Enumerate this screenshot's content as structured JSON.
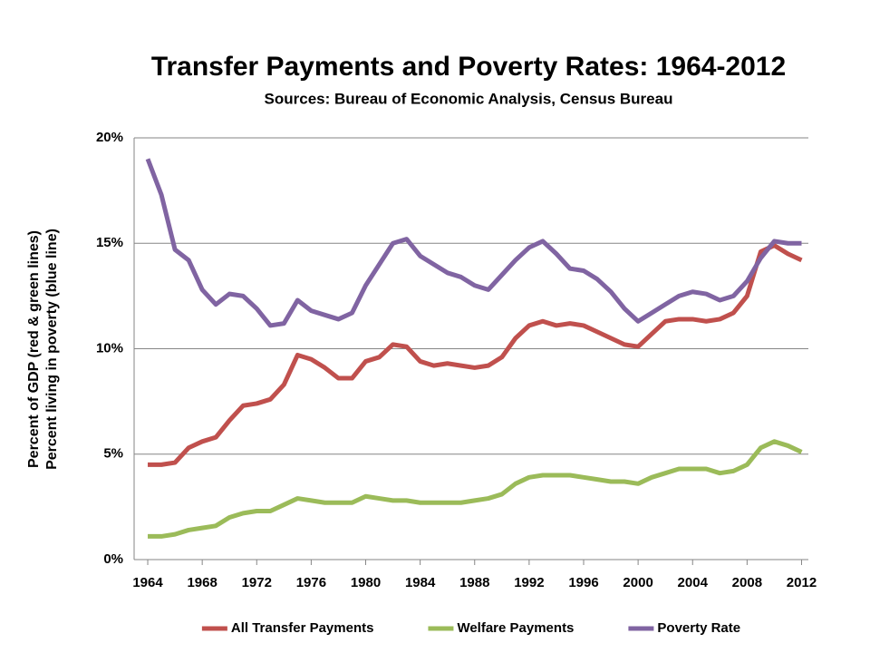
{
  "chart_data": {
    "type": "line",
    "title": "Transfer Payments and Poverty Rates: 1964-2012",
    "subtitle": "Sources: Bureau of Economic Analysis, Census Bureau",
    "y_label": [
      "Percent of GDP (red & green lines)",
      "Percent living in poverty (blue line)"
    ],
    "x": [
      1964,
      1965,
      1966,
      1967,
      1968,
      1969,
      1970,
      1971,
      1972,
      1973,
      1974,
      1975,
      1976,
      1977,
      1978,
      1979,
      1980,
      1981,
      1982,
      1983,
      1984,
      1985,
      1986,
      1987,
      1988,
      1989,
      1990,
      1991,
      1992,
      1993,
      1994,
      1995,
      1996,
      1997,
      1998,
      1999,
      2000,
      2001,
      2002,
      2003,
      2004,
      2005,
      2006,
      2007,
      2008,
      2009,
      2010,
      2011,
      2012
    ],
    "xlim": [
      1963,
      2012.5
    ],
    "xticks": [
      1964,
      1968,
      1972,
      1976,
      1980,
      1984,
      1988,
      1992,
      1996,
      2000,
      2004,
      2008,
      2012
    ],
    "ylim": [
      0,
      20
    ],
    "yticks": [
      {
        "value": 0,
        "label": "0%"
      },
      {
        "value": 5,
        "label": "5%"
      },
      {
        "value": 10,
        "label": "10%"
      },
      {
        "value": 15,
        "label": "15%"
      },
      {
        "value": 20,
        "label": "20%"
      }
    ],
    "grid": true,
    "legend": "bottom",
    "series": [
      {
        "name": "All Transfer Payments",
        "color": "#c0504d",
        "values": [
          4.5,
          4.5,
          4.6,
          5.3,
          5.6,
          5.8,
          6.6,
          7.3,
          7.4,
          7.6,
          8.3,
          9.7,
          9.5,
          9.1,
          8.6,
          8.6,
          9.4,
          9.6,
          10.2,
          10.1,
          9.4,
          9.2,
          9.3,
          9.2,
          9.1,
          9.2,
          9.6,
          10.5,
          11.1,
          11.3,
          11.1,
          11.2,
          11.1,
          10.8,
          10.5,
          10.2,
          10.1,
          10.7,
          11.3,
          11.4,
          11.4,
          11.3,
          11.4,
          11.7,
          12.5,
          14.6,
          14.9,
          14.5,
          14.2
        ]
      },
      {
        "name": "Welfare Payments",
        "color": "#9bbb59",
        "values": [
          1.1,
          1.1,
          1.2,
          1.4,
          1.5,
          1.6,
          2.0,
          2.2,
          2.3,
          2.3,
          2.6,
          2.9,
          2.8,
          2.7,
          2.7,
          2.7,
          3.0,
          2.9,
          2.8,
          2.8,
          2.7,
          2.7,
          2.7,
          2.7,
          2.8,
          2.9,
          3.1,
          3.6,
          3.9,
          4.0,
          4.0,
          4.0,
          3.9,
          3.8,
          3.7,
          3.7,
          3.6,
          3.9,
          4.1,
          4.3,
          4.3,
          4.3,
          4.1,
          4.2,
          4.5,
          5.3,
          5.6,
          5.4,
          5.1
        ]
      },
      {
        "name": "Poverty Rate",
        "color": "#8064a2",
        "values": [
          19.0,
          17.3,
          14.7,
          14.2,
          12.8,
          12.1,
          12.6,
          12.5,
          11.9,
          11.1,
          11.2,
          12.3,
          11.8,
          11.6,
          11.4,
          11.7,
          13.0,
          14.0,
          15.0,
          15.2,
          14.4,
          14.0,
          13.6,
          13.4,
          13.0,
          12.8,
          13.5,
          14.2,
          14.8,
          15.1,
          14.5,
          13.8,
          13.7,
          13.3,
          12.7,
          11.9,
          11.3,
          11.7,
          12.1,
          12.5,
          12.7,
          12.6,
          12.3,
          12.5,
          13.2,
          14.3,
          15.1,
          15.0,
          15.0
        ]
      }
    ]
  }
}
